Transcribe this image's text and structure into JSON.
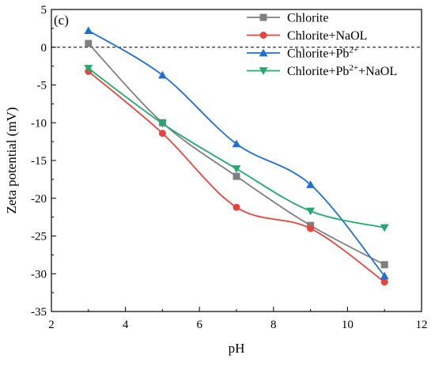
{
  "chart_data": {
    "type": "line",
    "panel_label": "(c)",
    "xlabel": "pH",
    "ylabel": "Zeta potential (mV)",
    "xlim": [
      2,
      12
    ],
    "ylim": [
      -35,
      5
    ],
    "x_ticks": [
      2,
      4,
      6,
      8,
      10,
      12
    ],
    "y_ticks": [
      5,
      0,
      -5,
      -10,
      -15,
      -20,
      -25,
      -30,
      -35
    ],
    "x_minor_step": 1,
    "y_minor_step": 2.5,
    "reference_line": {
      "y": 0,
      "style": "dashed",
      "color": "#000000"
    },
    "grid": false,
    "legend_position": "top-right",
    "x": [
      3,
      5,
      7,
      9,
      11
    ],
    "series": [
      {
        "name": "Chlorite",
        "name_base": "Chlorite",
        "name_sup": "",
        "name_tail": "",
        "values": [
          0.5,
          -10.0,
          -17.1,
          -23.6,
          -28.8
        ],
        "color": "#7f7f7f",
        "marker": "square"
      },
      {
        "name": "Chlorite+NaOL",
        "name_base": "Chlorite+NaOL",
        "name_sup": "",
        "name_tail": "",
        "values": [
          -3.2,
          -11.4,
          -21.2,
          -24.0,
          -31.1
        ],
        "color": "#e8433c",
        "marker": "circle"
      },
      {
        "name": "Chlorite+Pb2+",
        "name_base": "Chlorite+Pb",
        "name_sup": "2+",
        "name_tail": "",
        "values": [
          2.2,
          -3.7,
          -12.8,
          -18.2,
          -30.3
        ],
        "color": "#1f6fd6",
        "marker": "triangle-up"
      },
      {
        "name": "Chlorite+Pb2++NaOL",
        "name_base": "Chlorite+Pb",
        "name_sup": "2+",
        "name_tail": "+NaOL",
        "values": [
          -2.8,
          -10.1,
          -16.1,
          -21.7,
          -23.9
        ],
        "color": "#22aa6a",
        "marker": "triangle-down"
      }
    ]
  }
}
